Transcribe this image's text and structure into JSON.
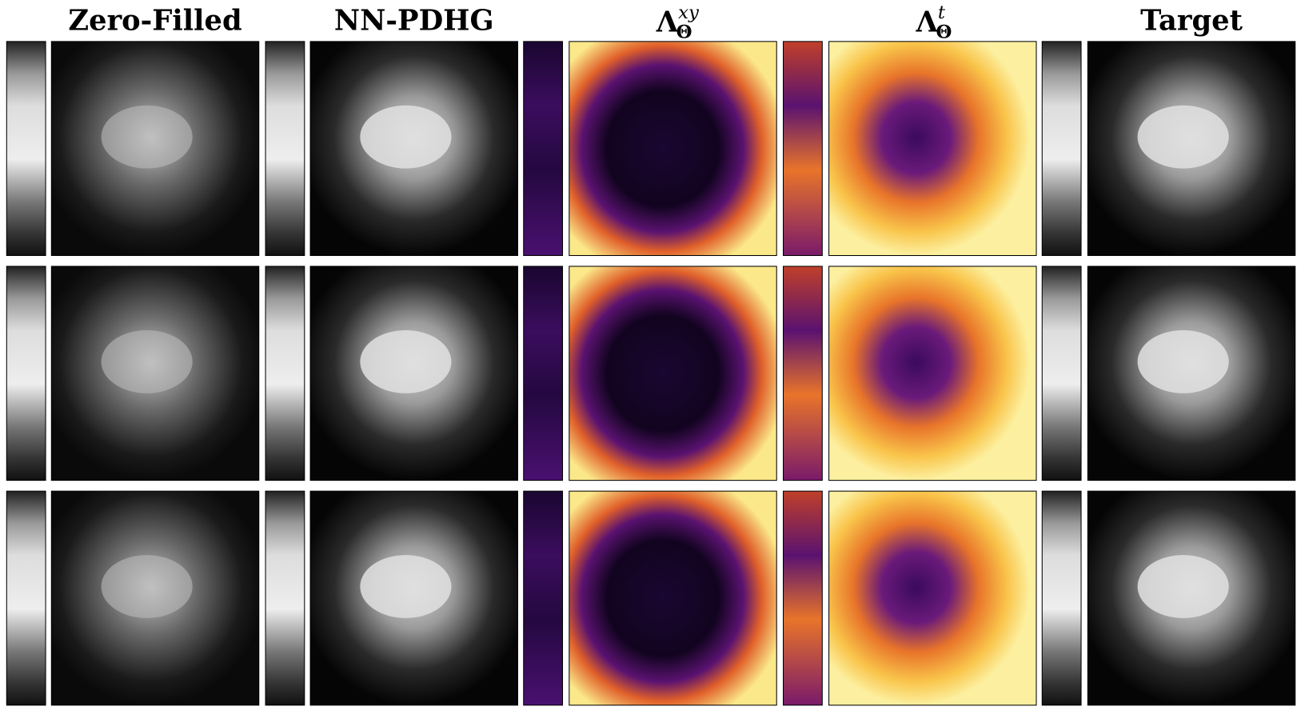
{
  "columns": [
    {
      "title": "Zero-Filled"
    },
    {
      "title": "NN-PDHG"
    },
    {
      "title": {
        "base": "Λ",
        "sub": "Θ",
        "sup": "xy"
      }
    },
    {
      "title": {
        "base": "Λ",
        "sub": "Θ",
        "sup": "t"
      }
    },
    {
      "title": "Target"
    }
  ]
}
